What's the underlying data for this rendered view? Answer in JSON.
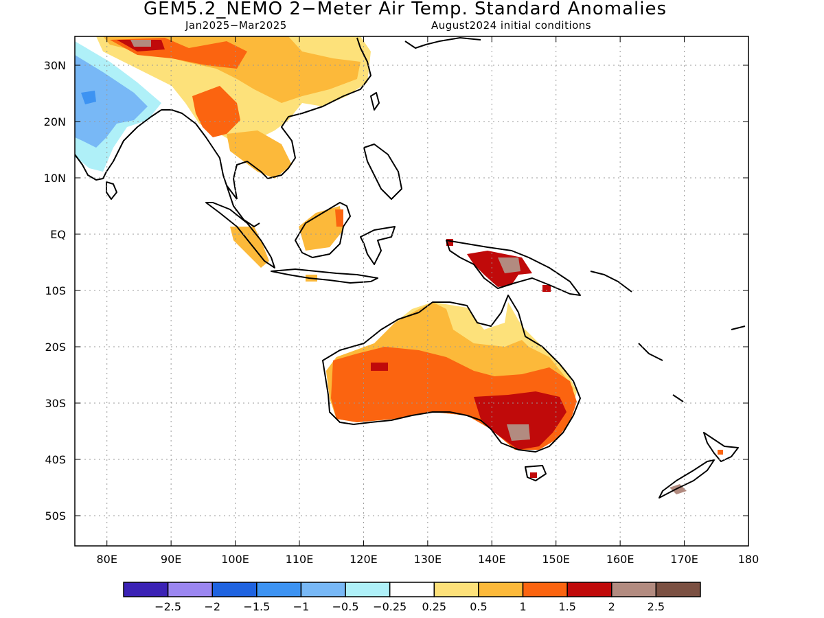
{
  "title": "GEM5.2_NEMO 2−Meter Air Temp. Standard Anomalies",
  "period": "Jan2025−Mar2025",
  "init": "August2024 initial conditions",
  "lat_labels": [
    "30N",
    "20N",
    "10N",
    "EQ",
    "10S",
    "20S",
    "30S",
    "40S",
    "50S"
  ],
  "lon_labels": [
    "80E",
    "90E",
    "100E",
    "110E",
    "120E",
    "130E",
    "140E",
    "150E",
    "160E",
    "170E",
    "180"
  ],
  "legend": {
    "colors": [
      "#3b22b5",
      "#9b86f0",
      "#1f63e0",
      "#3d93f2",
      "#78b8f6",
      "#aff0f8",
      "#ffffff",
      "#fde17a",
      "#fcb93a",
      "#fb6410",
      "#c00a0a",
      "#b28b80",
      "#7b5042"
    ],
    "labels": [
      "−2.5",
      "−2",
      "−1.5",
      "−1",
      "−0.5",
      "−0.25",
      "0.25",
      "0.5",
      "1",
      "1.5",
      "2",
      "2.5"
    ]
  },
  "anomaly_colors": {
    "neg_1": "#3d93f2",
    "neg_05": "#78b8f6",
    "neg_025": "#aff0f8",
    "pos_025": "#fde17a",
    "pos_05": "#fcb93a",
    "pos_1": "#fb6410",
    "pos_15": "#c00a0a",
    "pos_2": "#b28b80"
  }
}
